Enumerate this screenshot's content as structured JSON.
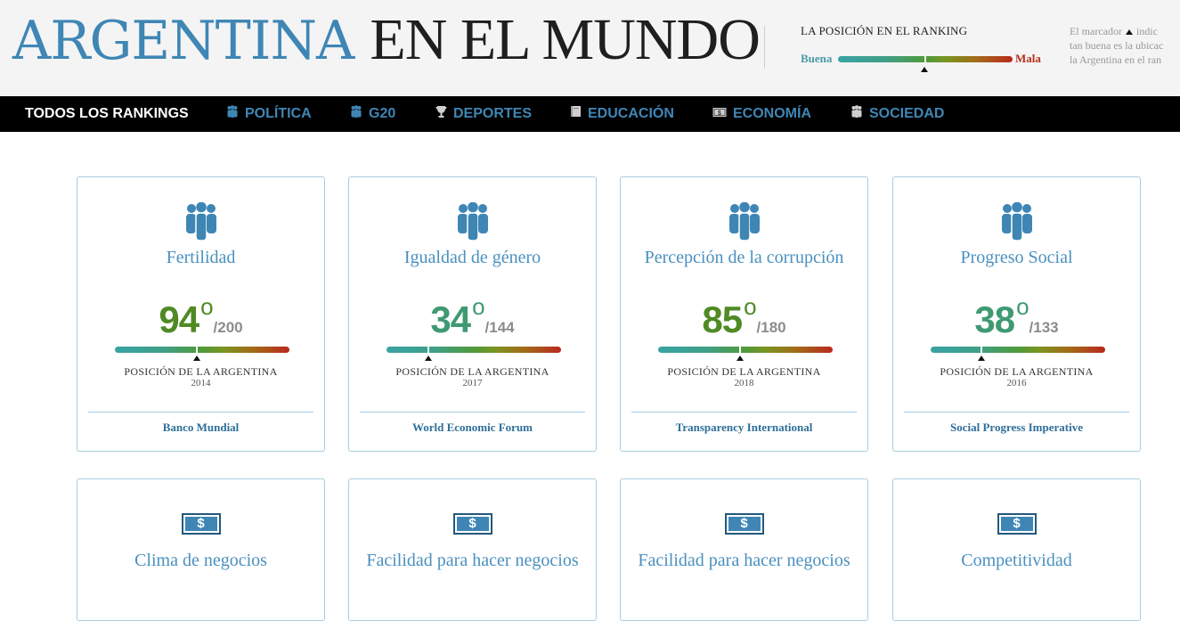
{
  "header": {
    "title_strong": "ARGENTINA",
    "title_light": "EN EL MUNDO",
    "legend_title": "LA POSICIÓN EN EL RANKING",
    "legend_good": "Buena",
    "legend_bad": "Mala",
    "legend_note_line1a": "El marcador",
    "legend_note_line1b": "indic",
    "legend_note_line2": "tan buena es la ubicac",
    "legend_note_line3": "la Argentina en el ran"
  },
  "nav": {
    "items": [
      {
        "label": "TODOS LOS RANKINGS",
        "icon": ""
      },
      {
        "label": "POLÍTICA",
        "icon": "people-icon"
      },
      {
        "label": "G20",
        "icon": "people-icon"
      },
      {
        "label": "DEPORTES",
        "icon": "trophy-icon"
      },
      {
        "label": "EDUCACIÓN",
        "icon": "book-icon"
      },
      {
        "label": "ECONOMÍA",
        "icon": "money-icon"
      },
      {
        "label": "SOCIEDAD",
        "icon": "people-icon"
      }
    ]
  },
  "colors": {
    "accent": "#3f86b5",
    "good": "#4a9ba6",
    "bad": "#b5301f",
    "card_border": "#a9cde0"
  },
  "cards": [
    {
      "icon": "people-icon",
      "title": "Fertilidad",
      "rank": "94",
      "deg": "o",
      "total": "/200",
      "rank_fraction": 0.47,
      "rank_color": "#4f8a24",
      "pos_label": "POSICIÓN DE LA ARGENTINA",
      "year": "2014",
      "source": "Banco Mundial"
    },
    {
      "icon": "people-icon",
      "title": "Igualdad de género",
      "rank": "34",
      "deg": "o",
      "total": "/144",
      "rank_fraction": 0.24,
      "rank_color": "#3f9a72",
      "pos_label": "POSICIÓN DE LA ARGENTINA",
      "year": "2017",
      "source": "World Economic Forum"
    },
    {
      "icon": "people-icon",
      "title": "Percepción de la corrupción",
      "rank": "85",
      "deg": "o",
      "total": "/180",
      "rank_fraction": 0.47,
      "rank_color": "#4f8a24",
      "pos_label": "POSICIÓN DE LA ARGENTINA",
      "year": "2018",
      "source": "Transparency International"
    },
    {
      "icon": "people-icon",
      "title": "Progreso Social",
      "rank": "38",
      "deg": "o",
      "total": "/133",
      "rank_fraction": 0.29,
      "rank_color": "#3f9a72",
      "pos_label": "POSICIÓN DE LA ARGENTINA",
      "year": "2016",
      "source": "Social Progress Imperative"
    }
  ],
  "cards2": [
    {
      "icon": "money-icon",
      "symbol": "$",
      "title": "Clima de negocios"
    },
    {
      "icon": "money-icon",
      "symbol": "$",
      "title": "Facilidad para hacer negocios"
    },
    {
      "icon": "money-icon",
      "symbol": "$",
      "title": "Facilidad para hacer negocios"
    },
    {
      "icon": "money-icon",
      "symbol": "$",
      "title": "Competitividad"
    }
  ]
}
